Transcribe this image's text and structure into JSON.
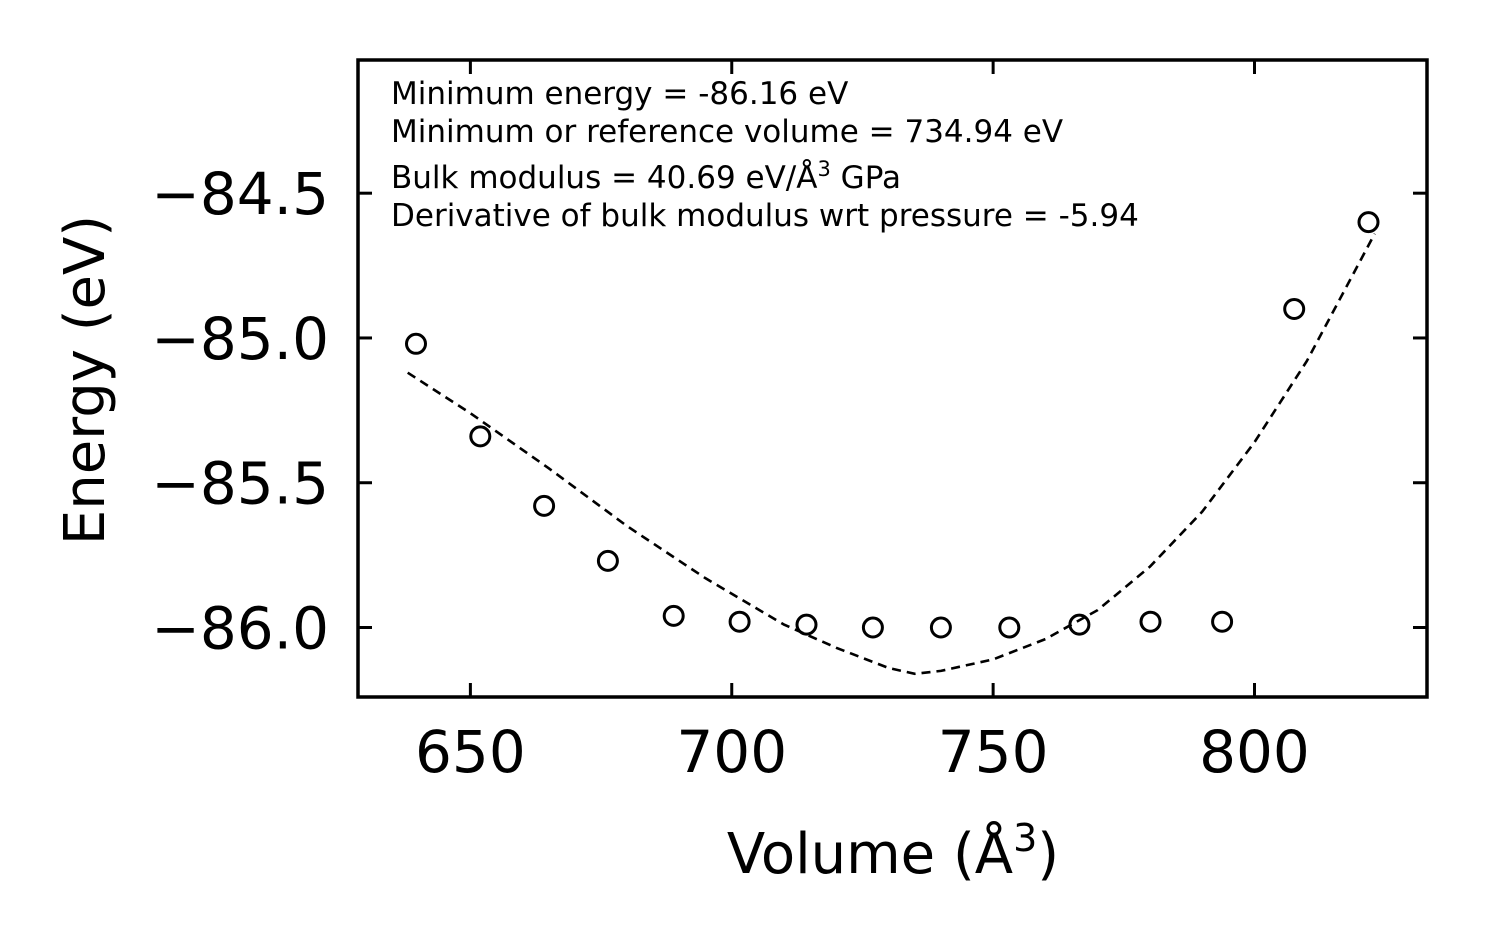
{
  "chart_data": {
    "type": "scatter",
    "xlabel": "Volume (Å",
    "xlabel_sup": "3",
    "xlabel_close": ")",
    "ylabel": "Energy (eV)",
    "xlim": [
      628.5,
      833
    ],
    "ylim": [
      -86.24,
      -84.04
    ],
    "xticks": [
      650,
      700,
      750,
      800
    ],
    "xtick_labels": [
      "650",
      "700",
      "750",
      "800"
    ],
    "yticks": [
      -84.5,
      -85.0,
      -85.5,
      -86.0
    ],
    "ytick_labels": [
      "−84.5",
      "−85.0",
      "−85.5",
      "−86.0"
    ],
    "annotations": [
      "Minimum energy = -86.16 eV",
      "Minimum or reference volume = 734.94 eV",
      "Bulk modulus = 40.69 eV/Å",
      "3",
      " GPa",
      "Derivative of bulk modulus wrt pressure = -5.94"
    ],
    "series": [
      {
        "name": "data",
        "style": "open-circle",
        "x": [
          639.6,
          651.9,
          664.1,
          676.3,
          688.9,
          701.5,
          714.3,
          727.0,
          740.0,
          753.1,
          766.5,
          780.1,
          793.8,
          807.6,
          821.8
        ],
        "y": [
          -85.02,
          -85.34,
          -85.58,
          -85.77,
          -85.96,
          -85.98,
          -85.99,
          -86.0,
          -86.0,
          -86.0,
          -85.99,
          -85.98,
          -85.98,
          -84.9,
          -84.6
        ]
      },
      {
        "name": "fit",
        "style": "dashed-line",
        "x": [
          638,
          650,
          665,
          680,
          695,
          710,
          720,
          730,
          735,
          740,
          750,
          760,
          770,
          780,
          790,
          800,
          810,
          823
        ],
        "y": [
          -85.12,
          -85.26,
          -85.45,
          -85.65,
          -85.83,
          -85.99,
          -86.07,
          -86.14,
          -86.16,
          -86.15,
          -86.11,
          -86.04,
          -85.94,
          -85.79,
          -85.6,
          -85.36,
          -85.08,
          -84.64
        ]
      }
    ]
  }
}
